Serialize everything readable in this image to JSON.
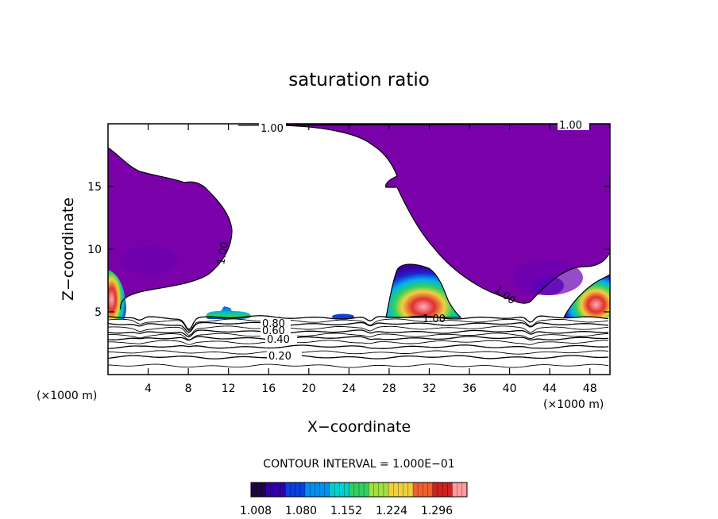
{
  "chart_data": {
    "type": "contour",
    "title": "saturation ratio",
    "xlabel": "X−coordinate",
    "ylabel": "Z−coordinate",
    "x_unit_left": "(×1000 m)",
    "x_unit_right": "(×1000 m)",
    "xlim": [
      0,
      50
    ],
    "ylim": [
      0,
      20
    ],
    "x_ticks": [
      4,
      8,
      12,
      16,
      20,
      24,
      28,
      32,
      36,
      40,
      44,
      48
    ],
    "y_ticks": [
      5,
      10,
      15
    ],
    "contour_interval": "CONTOUR INTERVAL = 1.000E−01",
    "contour_labels": [
      "1.00",
      "1.00",
      "1.00",
      "1.00",
      "1.00",
      "0.80",
      "0.60",
      "0.40",
      "0.20"
    ],
    "colorbar": {
      "tick_labels": [
        "1.008",
        "1.080",
        "1.152",
        "1.224",
        "1.296"
      ],
      "colors": [
        "#1a0840",
        "#2f00a8",
        "#0a40e0",
        "#0090f0",
        "#00d0d0",
        "#30d060",
        "#a0e040",
        "#f0d040",
        "#f06030",
        "#d02020",
        "#ff9aa0"
      ]
    },
    "fill_color": "#7a00aa",
    "grid": false
  }
}
